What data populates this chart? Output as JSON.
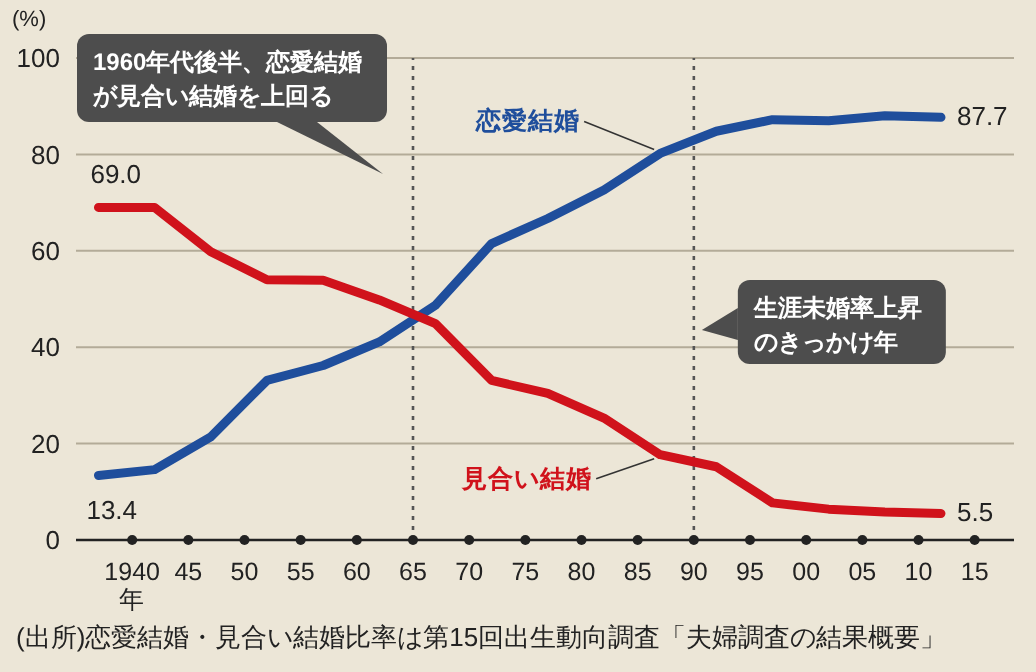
{
  "chart_data": {
    "type": "line",
    "ylabel": "(%)",
    "x": [
      1937,
      1942,
      1947,
      1952,
      1957,
      1962,
      1967,
      1972,
      1977,
      1982,
      1987,
      1992,
      1997,
      2002,
      2007,
      2012
    ],
    "xlim": [
      1935,
      2018.5
    ],
    "xticks": [
      {
        "value": 1940,
        "label": "1940\n年"
      },
      {
        "value": 1945,
        "label": "45"
      },
      {
        "value": 1950,
        "label": "50"
      },
      {
        "value": 1955,
        "label": "55"
      },
      {
        "value": 1960,
        "label": "60"
      },
      {
        "value": 1965,
        "label": "65"
      },
      {
        "value": 1970,
        "label": "70"
      },
      {
        "value": 1975,
        "label": "75"
      },
      {
        "value": 1980,
        "label": "80"
      },
      {
        "value": 1985,
        "label": "85"
      },
      {
        "value": 1990,
        "label": "90"
      },
      {
        "value": 1995,
        "label": "95"
      },
      {
        "value": 2000,
        "label": "00"
      },
      {
        "value": 2005,
        "label": "05"
      },
      {
        "value": 2010,
        "label": "10"
      },
      {
        "value": 2015,
        "label": "15"
      }
    ],
    "ylim": [
      0,
      100
    ],
    "yticks": [
      0,
      20,
      40,
      60,
      80,
      100
    ],
    "series": [
      {
        "name": "恋愛結婚",
        "color": "#1f4e9c",
        "values": [
          13.4,
          14.6,
          21.4,
          33.1,
          36.2,
          41.1,
          48.7,
          61.5,
          66.7,
          72.6,
          80.2,
          84.8,
          87.2,
          87.0,
          88.0,
          87.7
        ],
        "value_labels": [
          "13.4",
          null,
          null,
          null,
          null,
          null,
          null,
          null,
          null,
          null,
          null,
          null,
          null,
          null,
          null,
          "87.7"
        ]
      },
      {
        "name": "見合い結婚",
        "color": "#d0121b",
        "values": [
          69.0,
          69.0,
          59.8,
          54.0,
          53.9,
          49.8,
          44.9,
          33.1,
          30.4,
          25.3,
          17.7,
          15.2,
          7.7,
          6.4,
          5.8,
          5.5
        ],
        "value_labels": [
          "69.0",
          null,
          null,
          null,
          null,
          null,
          null,
          null,
          null,
          null,
          null,
          null,
          null,
          null,
          null,
          "5.5"
        ]
      }
    ],
    "ref_lines": [
      {
        "axis": "x",
        "value": 1965,
        "label": "1960年代後半、恋愛結婚が見合い結婚を上回る",
        "color": "#555555",
        "line_style": "dotted"
      },
      {
        "axis": "x",
        "value": 1990,
        "label": "生涯未婚率上昇のきっかけ年",
        "color": "#555555",
        "line_style": "dotted"
      }
    ],
    "grid": "y",
    "marker": "none",
    "line_style": "solid",
    "annotations": [
      "(出所)恋愛結婚・見合い結婚比率は第15回出生動向調査「夫婦調査の結果概要」"
    ]
  }
}
